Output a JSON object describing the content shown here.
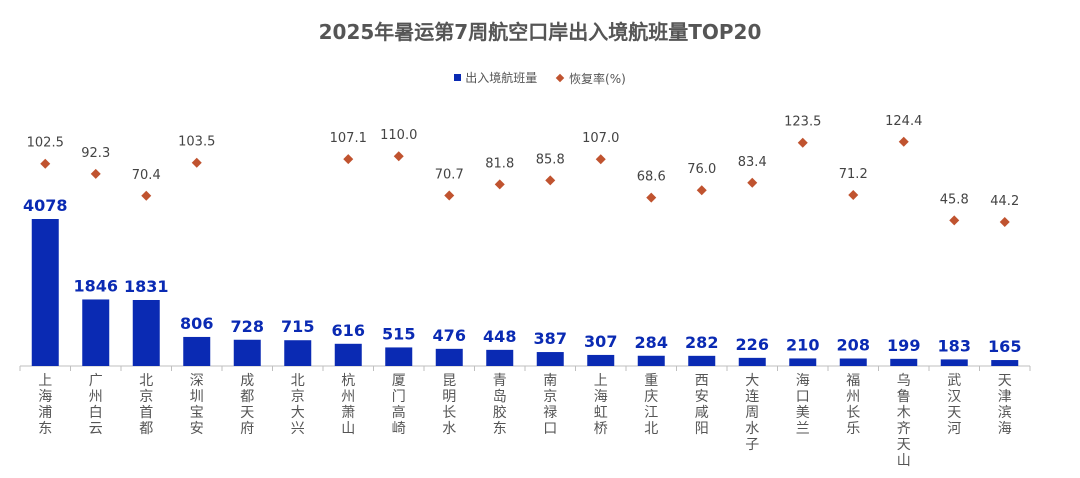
{
  "chart_data": {
    "type": "bar",
    "title": "2025年暑运第7周航空口岸出入境航班量TOP20",
    "legend_position": "top-center",
    "categories": [
      "上海浦东",
      "广州白云",
      "北京首都",
      "深圳宝安",
      "成都天府",
      "北京大兴",
      "杭州萧山",
      "厦门高崎",
      "昆明长水",
      "青岛胶东",
      "南京禄口",
      "上海虹桥",
      "重庆江北",
      "西安咸阳",
      "大连周水子",
      "海口美兰",
      "福州长乐",
      "乌鲁木齐天山",
      "武汉天河",
      "天津滨海"
    ],
    "series": [
      {
        "name": "出入境航班量",
        "kind": "bar",
        "color": "#0a2ab3",
        "values": [
          4078,
          1846,
          1831,
          806,
          728,
          715,
          616,
          515,
          476,
          448,
          387,
          307,
          284,
          282,
          226,
          210,
          208,
          199,
          183,
          165
        ]
      },
      {
        "name": "恢复率(%)",
        "kind": "marker",
        "color": "#c0532f",
        "values": [
          102.5,
          92.3,
          70.4,
          103.5,
          null,
          null,
          107.1,
          110.0,
          70.7,
          81.8,
          85.8,
          107.0,
          68.6,
          76.0,
          83.4,
          123.5,
          71.2,
          124.4,
          45.8,
          44.2
        ],
        "labels": [
          "102.5",
          "92.3",
          "70.4",
          "103.5",
          "",
          "",
          "107.1",
          "110.0",
          "70.7",
          "81.8",
          "85.8",
          "107.0",
          "68.6",
          "76.0",
          "83.4",
          "123.5",
          "71.2",
          "124.4",
          "45.8",
          "44.2"
        ]
      }
    ],
    "grid": false
  }
}
